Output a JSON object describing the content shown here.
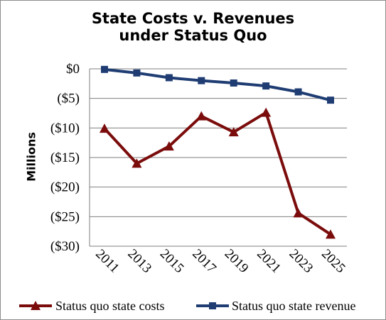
{
  "chart_data": {
    "type": "line",
    "title_line1": "State Costs v. Revenues",
    "title_line2": "under Status Quo",
    "ylabel": "Millions",
    "xlabel": "",
    "x": [
      "2011",
      "2013",
      "2015",
      "2017",
      "2019",
      "2021",
      "2023",
      "2025"
    ],
    "ylim": [
      -30,
      0
    ],
    "y_ticks": [
      0,
      -5,
      -10,
      -15,
      -20,
      -25,
      -30
    ],
    "y_tick_labels": [
      "$0",
      "($5)",
      "($10)",
      "($15)",
      "($20)",
      "($25)",
      "($30)"
    ],
    "grid": true,
    "legend_position": "bottom",
    "series": [
      {
        "name": "Status quo state costs",
        "color": "#7b0c0c",
        "marker": "triangle",
        "values": [
          -10.1,
          -16.0,
          -13.1,
          -8.0,
          -10.7,
          -7.4,
          -24.4,
          -28.0
        ]
      },
      {
        "name": "Status quo state revenue",
        "color": "#1f3d73",
        "marker": "square",
        "values": [
          -0.1,
          -0.7,
          -1.5,
          -2.0,
          -2.4,
          -2.9,
          -3.9,
          -5.3
        ]
      }
    ]
  }
}
